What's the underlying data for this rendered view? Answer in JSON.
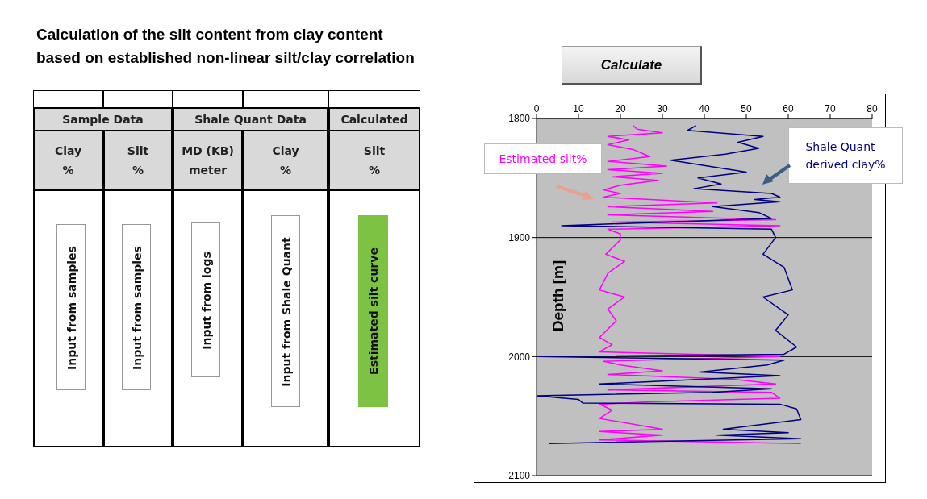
{
  "chart_data": {
    "type": "line",
    "title": "Calculation of the silt content from clay content based on established non-linear silt/clay correlation",
    "ylabel": "Depth [m]",
    "xlim": [
      0,
      80
    ],
    "xticks": [
      0,
      10,
      20,
      30,
      40,
      50,
      60,
      70,
      80
    ],
    "ylim": [
      2100,
      1800
    ],
    "yticks": [
      1800,
      1900,
      2000,
      2100
    ],
    "grid": "y",
    "marker": "none",
    "series": [
      {
        "name": "Estimated silt%",
        "color": "#ff00ff",
        "x": [
          23,
          24,
          30,
          17,
          22,
          17,
          23,
          27,
          17,
          31,
          17,
          30,
          18,
          29,
          20,
          16,
          20,
          16,
          43,
          17,
          42,
          17,
          57,
          18,
          58,
          17,
          20,
          20,
          16.5,
          21,
          17,
          15,
          21,
          17,
          19,
          15,
          18,
          15,
          58,
          16,
          20,
          30,
          17,
          47,
          57,
          17,
          56,
          58,
          27,
          15,
          18,
          15,
          30,
          15,
          30,
          15,
          63
        ],
        "values": [
          1806,
          1809,
          1812,
          1815,
          1818,
          1822,
          1826,
          1832,
          1836,
          1840,
          1843,
          1846,
          1849,
          1852,
          1856,
          1860,
          1863,
          1866,
          1871,
          1874,
          1878,
          1881,
          1885,
          1887,
          1890,
          1893,
          1897,
          1902,
          1914,
          1920,
          1930,
          1944,
          1950,
          1960,
          1970,
          1984,
          1990,
          1996,
          2000,
          2004,
          2007,
          2012,
          2015,
          2019,
          2023,
          2028,
          2030,
          2035,
          2038,
          2040,
          2045,
          2052,
          2061,
          2063,
          2066,
          2070,
          2073
        ]
      },
      {
        "name": "Shale Quant\nderived clay%",
        "color": "#000080",
        "x": [
          38,
          36,
          54,
          48,
          53,
          45,
          32,
          39,
          50,
          38.5,
          44,
          37.5,
          56,
          58,
          52,
          58,
          42,
          53,
          56,
          6,
          56,
          57,
          54,
          59,
          61,
          54,
          60,
          57,
          62,
          59,
          0,
          59,
          55,
          39,
          58,
          15,
          56,
          42,
          0,
          10,
          11,
          58,
          62,
          63,
          44.5,
          60,
          43,
          63,
          3
        ],
        "values": [
          1806,
          1810,
          1815,
          1820,
          1825,
          1830,
          1835,
          1839,
          1845,
          1850,
          1855,
          1859,
          1863,
          1866,
          1868,
          1870,
          1874,
          1879,
          1884,
          1890,
          1893,
          1900,
          1914,
          1925,
          1944,
          1950,
          1965,
          1978,
          1992,
          1998,
          2000,
          2003,
          2007,
          2013,
          2016,
          2023,
          2027,
          2030,
          2033,
          2036,
          2039,
          2040,
          2044,
          2053,
          2061,
          2064,
          2066,
          2069,
          2073
        ]
      }
    ],
    "annotations": [
      "Calculate",
      "Sample Data",
      "Shale Quant Data",
      "Calculated",
      "Clay\n%",
      "Silt\n%",
      "MD (KB)\nmeter",
      "Clay\n%",
      "Silt\n%",
      "Input from samples",
      "Input from samples",
      "Input from logs",
      "Input from Shale Quant",
      "Estimated silt curve"
    ]
  }
}
